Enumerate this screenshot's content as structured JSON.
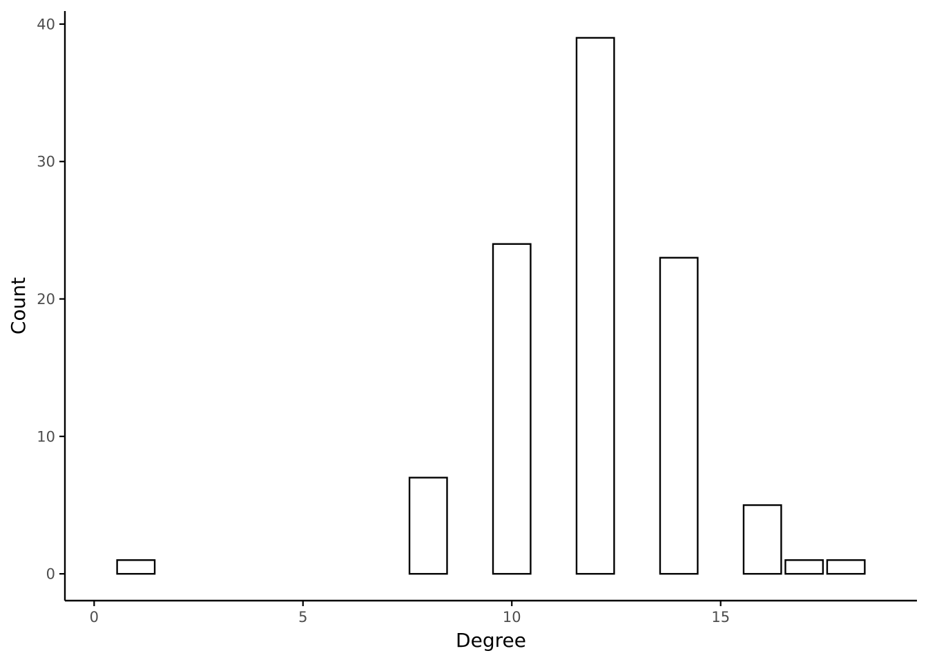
{
  "chart_data": {
    "type": "bar",
    "xlabel": "Degree",
    "ylabel": "Count",
    "x": [
      1,
      8,
      10,
      12,
      14,
      16,
      17,
      18
    ],
    "values": [
      1,
      7,
      24,
      39,
      23,
      5,
      1,
      1
    ],
    "bar_width": 0.9,
    "xlim": [
      -0.7,
      19.7
    ],
    "ylim": [
      -1.95,
      40.95
    ],
    "xticks": [
      0,
      5,
      10,
      15
    ],
    "yticks": [
      0,
      10,
      20,
      30,
      40
    ],
    "grid": false,
    "legend": "none",
    "bar_fill": "#ffffff",
    "bar_outline": "#000000"
  }
}
